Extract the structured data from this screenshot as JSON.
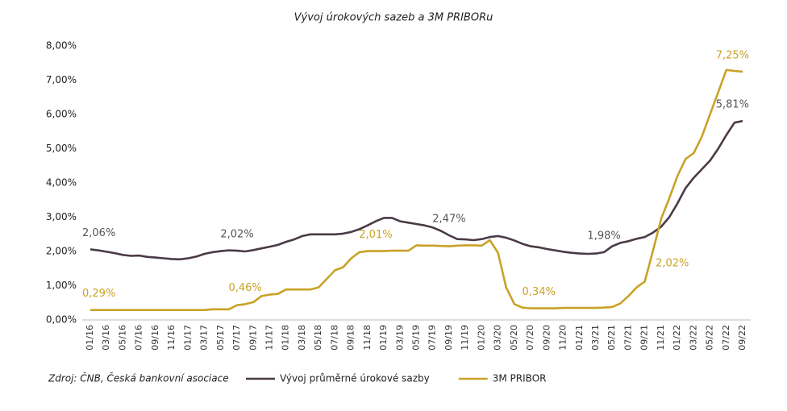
{
  "chart_data": {
    "type": "line",
    "title": "Vývoj úrokových sazeb a 3M PRIBORu",
    "source": "Zdroj: ČNB, Česká bankovní asociace",
    "categories": [
      "01/16",
      null,
      "03/16",
      null,
      "05/16",
      null,
      "07/16",
      null,
      "09/16",
      null,
      "11/16",
      null,
      "01/17",
      null,
      "03/17",
      null,
      "05/17",
      null,
      "07/17",
      null,
      "09/17",
      null,
      "11/17",
      null,
      "01/18",
      null,
      "03/18",
      null,
      "05/18",
      null,
      "07/18",
      null,
      "09/18",
      null,
      "11/18",
      null,
      "01/19",
      null,
      "03/19",
      null,
      "05/19",
      null,
      "07/19",
      null,
      "09/19",
      null,
      "11/19",
      null,
      "01/20",
      null,
      "03/20",
      null,
      "05/20",
      null,
      "07/20",
      null,
      "09/20",
      null,
      "11/20",
      null,
      "01/21",
      null,
      "03/21",
      null,
      "05/21",
      null,
      "07/21",
      null,
      "09/21",
      null,
      "11/21",
      null,
      "01/22",
      null,
      "03/22",
      null,
      "05/22",
      null,
      "07/22",
      null,
      "09/22"
    ],
    "series": [
      {
        "name": "Vývoj průměrné úrokové sazby",
        "color": "#4a3a46",
        "values": [
          2.06,
          2.03,
          1.99,
          1.95,
          1.9,
          1.87,
          1.88,
          1.84,
          1.82,
          1.8,
          1.78,
          1.77,
          1.8,
          1.85,
          1.93,
          1.98,
          2.01,
          2.03,
          2.02,
          2.0,
          2.04,
          2.09,
          2.14,
          2.19,
          2.28,
          2.35,
          2.45,
          2.5,
          2.5,
          2.5,
          2.5,
          2.52,
          2.57,
          2.65,
          2.76,
          2.88,
          2.98,
          2.98,
          2.88,
          2.84,
          2.8,
          2.76,
          2.7,
          2.6,
          2.47,
          2.36,
          2.35,
          2.33,
          2.36,
          2.42,
          2.45,
          2.4,
          2.32,
          2.22,
          2.15,
          2.12,
          2.07,
          2.03,
          1.99,
          1.96,
          1.94,
          1.93,
          1.94,
          1.98,
          2.15,
          2.25,
          2.3,
          2.37,
          2.42,
          2.55,
          2.72,
          3.0,
          3.4,
          3.85,
          4.15,
          4.4,
          4.65,
          5.0,
          5.4,
          5.76,
          5.81
        ],
        "value_labels": [
          "2,06%",
          null,
          null,
          null,
          null,
          null,
          null,
          null,
          null,
          null,
          null,
          null,
          null,
          null,
          null,
          null,
          null,
          null,
          "2,02%",
          null,
          null,
          null,
          null,
          null,
          null,
          null,
          null,
          null,
          null,
          null,
          null,
          null,
          null,
          null,
          null,
          null,
          null,
          null,
          null,
          null,
          null,
          null,
          null,
          null,
          "2,47%",
          null,
          null,
          null,
          null,
          null,
          null,
          null,
          null,
          null,
          null,
          null,
          null,
          null,
          null,
          null,
          null,
          null,
          null,
          "1,98%",
          null,
          null,
          null,
          null,
          null,
          null,
          null,
          null,
          null,
          null,
          null,
          null,
          null,
          null,
          null,
          null,
          "5,81%"
        ]
      },
      {
        "name": "3M PRIBOR",
        "color": "#c9a227",
        "values": [
          0.29,
          0.29,
          0.29,
          0.29,
          0.29,
          0.29,
          0.29,
          0.29,
          0.29,
          0.29,
          0.29,
          0.29,
          0.29,
          0.29,
          0.29,
          0.31,
          0.31,
          0.31,
          0.43,
          0.46,
          0.52,
          0.7,
          0.74,
          0.76,
          0.89,
          0.89,
          0.89,
          0.89,
          0.95,
          1.2,
          1.45,
          1.54,
          1.8,
          1.98,
          2.01,
          2.01,
          2.01,
          2.02,
          2.02,
          2.02,
          2.18,
          2.17,
          2.17,
          2.16,
          2.15,
          2.17,
          2.18,
          2.18,
          2.17,
          2.33,
          1.96,
          0.95,
          0.46,
          0.36,
          0.34,
          0.34,
          0.34,
          0.34,
          0.35,
          0.35,
          0.35,
          0.35,
          0.35,
          0.36,
          0.38,
          0.48,
          0.7,
          0.95,
          1.12,
          2.02,
          2.95,
          3.55,
          4.2,
          4.7,
          4.87,
          5.35,
          6.0,
          6.65,
          7.3,
          7.27,
          7.25
        ],
        "value_labels": [
          "0,29%",
          null,
          null,
          null,
          null,
          null,
          null,
          null,
          null,
          null,
          null,
          null,
          null,
          null,
          null,
          null,
          null,
          null,
          null,
          "0,46%",
          null,
          null,
          null,
          null,
          null,
          null,
          null,
          null,
          null,
          null,
          null,
          null,
          null,
          null,
          null,
          "2,01%",
          null,
          null,
          null,
          null,
          null,
          null,
          null,
          null,
          null,
          null,
          null,
          null,
          null,
          null,
          null,
          null,
          null,
          null,
          null,
          "0,34%",
          null,
          null,
          null,
          null,
          null,
          null,
          null,
          null,
          null,
          null,
          null,
          null,
          null,
          "2,02%",
          null,
          null,
          null,
          null,
          null,
          null,
          null,
          null,
          null,
          null,
          "7,25%"
        ]
      }
    ],
    "ylim": [
      0,
      8
    ],
    "yticks": [
      {
        "value": 0,
        "label": "0,00%"
      },
      {
        "value": 1,
        "label": "1,00%"
      },
      {
        "value": 2,
        "label": "2,00%"
      },
      {
        "value": 3,
        "label": "3,00%"
      },
      {
        "value": 4,
        "label": "4,00%"
      },
      {
        "value": 5,
        "label": "5,00%"
      },
      {
        "value": 6,
        "label": "6,00%"
      },
      {
        "value": 7,
        "label": "7,00%"
      },
      {
        "value": 8,
        "label": "8,00%"
      }
    ],
    "grid": false,
    "legend": "bottom"
  }
}
